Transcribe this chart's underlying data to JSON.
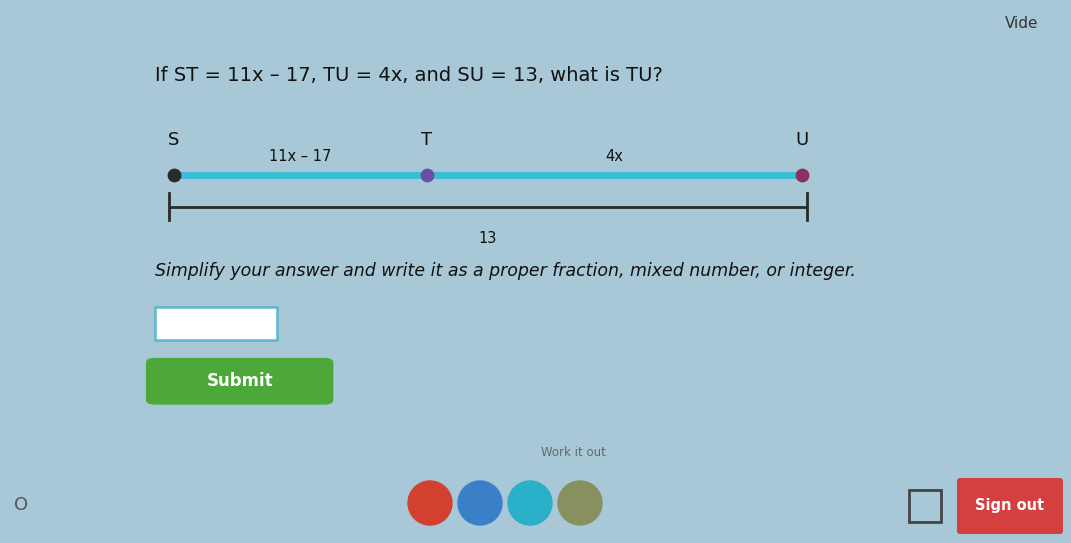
{
  "bg_color": "#a8c8d8",
  "panel_color": "#e8e9ea",
  "title": "If ST = 11x – 17, TU = 4x, and SU = 13, what is TU?",
  "title_fontsize": 14,
  "label_ST": "11x – 17",
  "label_TU": "4x",
  "label_SU": "13",
  "label_S": "S",
  "label_T": "T",
  "label_U": "U",
  "upper_line_color": "#3bbdd4",
  "lower_line_color": "#2a2a2a",
  "dot_color_S": "#2a2a2a",
  "dot_color_T": "#6b4fa0",
  "dot_color_U": "#8b3060",
  "simplify_text": "Simplify your answer and write it as a proper fraction, mixed number, or integer.",
  "simplify_fontsize": 12.5,
  "submit_text": "Submit",
  "submit_color": "#4da83a",
  "submit_text_color": "#ffffff",
  "vide_text": "Vide",
  "sign_out_text": "Sign out",
  "sign_out_color": "#d44040",
  "taskbar_color": "#c8c8c8",
  "work_it_out_text": "Work it out"
}
